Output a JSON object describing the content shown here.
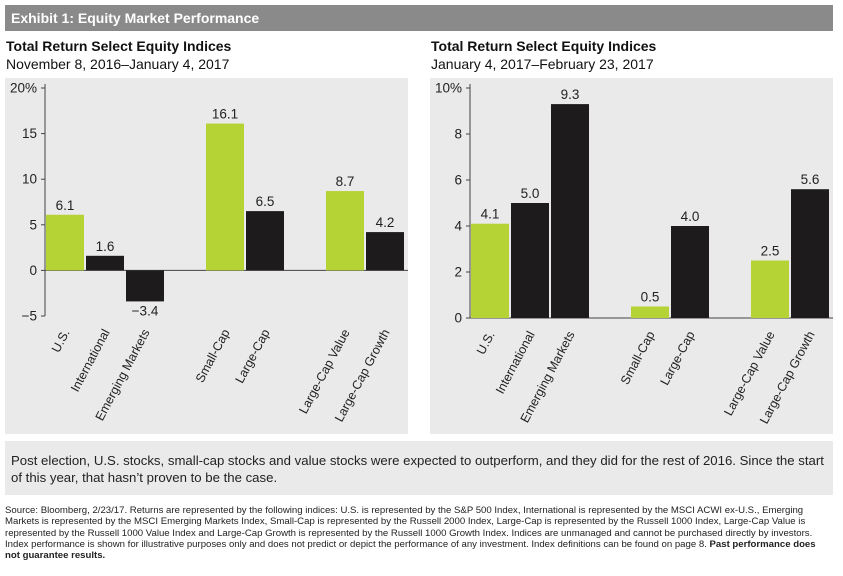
{
  "header": {
    "exhibit_title": "Exhibit 1: Equity Market Performance"
  },
  "colors": {
    "green": "#b5d334",
    "black": "#1e1b1c",
    "panel_bg": "#eaeaea"
  },
  "chart_data": [
    {
      "type": "bar",
      "title": "Total Return Select Equity Indices",
      "subtitle": "November 8, 2016–January 4, 2017",
      "ylim": [
        -5,
        20
      ],
      "yticks": [
        -5,
        0,
        5,
        10,
        15,
        20
      ],
      "ytick_labels": [
        "−5",
        "0",
        "5",
        "10",
        "15",
        "20%"
      ],
      "categories": [
        "U.S.",
        "International",
        "Emerging Markets",
        "Small-Cap",
        "Large-Cap",
        "Large-Cap Value",
        "Large-Cap Growth"
      ],
      "values": [
        6.1,
        1.6,
        -3.4,
        16.1,
        6.5,
        8.7,
        4.2
      ],
      "value_labels": [
        "6.1",
        "1.6",
        "−3.4",
        "16.1",
        "6.5",
        "8.7",
        "4.2"
      ],
      "bar_colors": [
        "green",
        "black",
        "black",
        "green",
        "black",
        "green",
        "black"
      ],
      "groups": [
        [
          0,
          1,
          2
        ],
        [
          3,
          4
        ],
        [
          5,
          6
        ]
      ],
      "grid": false
    },
    {
      "type": "bar",
      "title": "Total Return Select Equity Indices",
      "subtitle": "January 4, 2017–February 23, 2017",
      "ylim": [
        0,
        10
      ],
      "yticks": [
        0,
        2,
        4,
        6,
        8,
        10
      ],
      "ytick_labels": [
        "0",
        "2",
        "4",
        "6",
        "8",
        "10%"
      ],
      "categories": [
        "U.S.",
        "International",
        "Emerging Markets",
        "Small-Cap",
        "Large-Cap",
        "Large-Cap Value",
        "Large-Cap Growth"
      ],
      "values": [
        4.1,
        5.0,
        9.3,
        0.5,
        4.0,
        2.5,
        5.6
      ],
      "value_labels": [
        "4.1",
        "5.0",
        "9.3",
        "0.5",
        "4.0",
        "2.5",
        "5.6"
      ],
      "bar_colors": [
        "green",
        "black",
        "black",
        "green",
        "black",
        "green",
        "black"
      ],
      "groups": [
        [
          0,
          1,
          2
        ],
        [
          3,
          4
        ],
        [
          5,
          6
        ]
      ],
      "grid": false
    }
  ],
  "summary": "Post election, U.S. stocks, small-cap stocks and value stocks were expected to outperform, and they did for the rest of 2016. Since the start of this year, that hasn’t proven to be the case.",
  "source": {
    "text": "Source: Bloomberg, 2/23/17. Returns are represented by the following indices: U.S. is represented by the S&P 500 Index, International is represented by the MSCI ACWI ex-U.S., Emerging Markets is represented by the MSCI Emerging Markets Index, Small-Cap is represented by the Russell 2000 Index, Large-Cap is represented by the Russell 1000 Index, Large-Cap Value is represented by the Russell 1000 Value Index and Large-Cap Growth is represented by the Russell 1000 Growth Index. Indices are unmanaged and cannot be purchased directly by investors. Index performance is shown for illustrative purposes only and does not predict or depict the performance of any investment. Index definitions can be found on page 8.",
    "disclaimer": "Past performance does not guarantee results."
  }
}
